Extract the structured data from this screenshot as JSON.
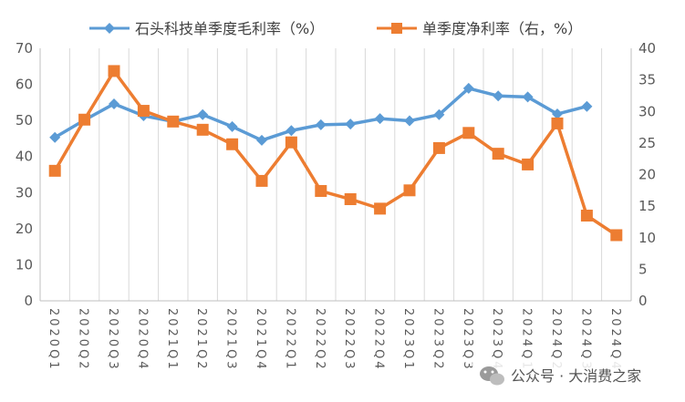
{
  "chart_data": {
    "type": "line",
    "categories": [
      "2020Q1",
      "2020Q2",
      "2020Q3",
      "2020Q4",
      "2021Q1",
      "2021Q2",
      "2021Q3",
      "2021Q4",
      "2022Q1",
      "2022Q2",
      "2022Q3",
      "2022Q4",
      "2023Q1",
      "2023Q2",
      "2023Q3",
      "2023Q4",
      "2024Q1",
      "2024Q2",
      "2024Q3",
      "2024Q4"
    ],
    "series": [
      {
        "name": "石头科技单季度毛利率（%）",
        "axis": "left",
        "color": "#5B9BD5",
        "marker": "diamond",
        "values": [
          45.3,
          50.1,
          54.6,
          51.3,
          49.7,
          51.6,
          48.3,
          44.5,
          47.2,
          48.8,
          49.0,
          50.5,
          49.9,
          51.6,
          58.9,
          56.8,
          56.5,
          51.8,
          53.9,
          null
        ]
      },
      {
        "name": "单季度净利率（右，%）",
        "axis": "right",
        "color": "#ED7D31",
        "marker": "square",
        "values": [
          20.6,
          28.7,
          36.4,
          30.1,
          28.4,
          27.1,
          24.8,
          19.0,
          25.1,
          17.4,
          16.1,
          14.6,
          17.5,
          24.2,
          26.6,
          23.3,
          21.6,
          28.1,
          13.5,
          10.4
        ]
      }
    ],
    "yleft_ticks": [
      "0",
      "10",
      "20",
      "30",
      "40",
      "50",
      "60",
      "70"
    ],
    "yright_ticks": [
      "0",
      "5",
      "10",
      "15",
      "20",
      "25",
      "30",
      "35",
      "40"
    ],
    "yleft_lim": [
      0,
      70
    ],
    "yright_lim": [
      0,
      40
    ],
    "grid": "vertical",
    "legend_position": "top"
  },
  "watermark": {
    "text": "公众号 · 大消费之家",
    "icon": "wechat-icon"
  }
}
